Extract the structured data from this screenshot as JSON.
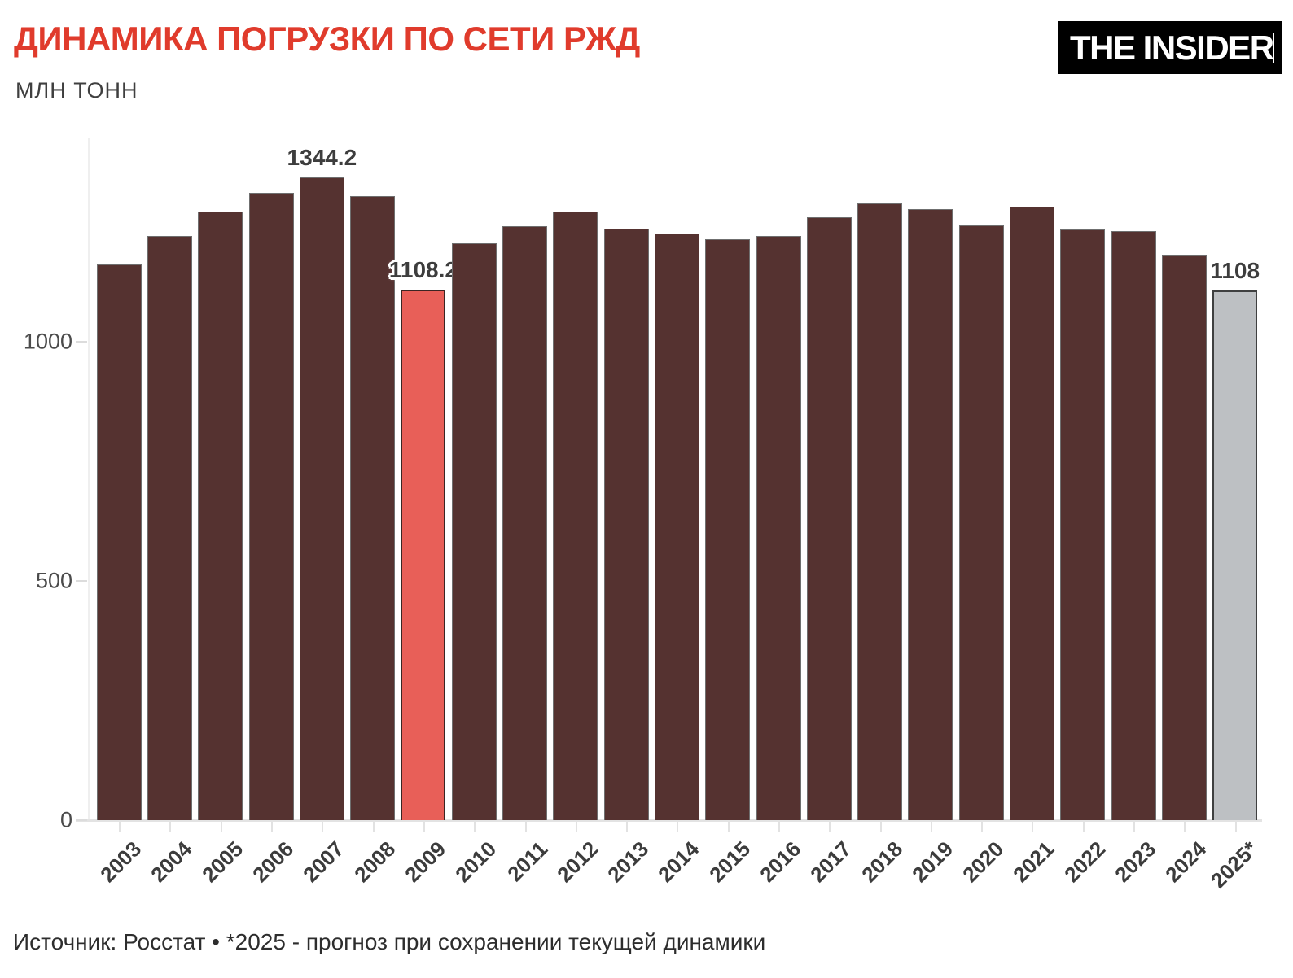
{
  "header": {
    "title": "ДИНАМИКА ПОГРУЗКИ ПО СЕТИ РЖД",
    "subtitle": "МЛН ТОНН",
    "logo_text": "THE INSIDER"
  },
  "footer": {
    "source": "Источник: Росстат • *2025 - прогноз при сохранении текущей динамики"
  },
  "colors": {
    "title": "#e03b2c",
    "bar_fill": "#553230",
    "bar_stroke": "#6f6f6f",
    "highlight_fill": "#e85f58",
    "highlight_stroke": "#3b2523",
    "forecast_fill": "#bdc0c3",
    "forecast_stroke": "#3f4040",
    "label_text": "#3d3d3d",
    "tick_text": "#4b4b4b",
    "logo_bg": "#000000",
    "logo_text": "#ffffff"
  },
  "chart_data": {
    "type": "bar",
    "title": "ДИНАМИКА ПОГРУЗКИ ПО СЕТИ РЖД",
    "xlabel": "",
    "ylabel": "МЛН ТОНН",
    "categories": [
      "2003",
      "2004",
      "2005",
      "2006",
      "2007",
      "2008",
      "2009",
      "2010",
      "2011",
      "2012",
      "2013",
      "2014",
      "2015",
      "2016",
      "2017",
      "2018",
      "2019",
      "2020",
      "2021",
      "2022",
      "2023",
      "2024",
      "2025*"
    ],
    "values": [
      1161,
      1221,
      1273,
      1311,
      1344.2,
      1304,
      1108.2,
      1206,
      1241,
      1272,
      1237,
      1227,
      1214,
      1222,
      1261,
      1290,
      1278,
      1244,
      1283,
      1234,
      1232,
      1181,
      1108
    ],
    "data_labels": [
      "",
      "",
      "",
      "",
      "1344.2",
      "",
      "1108.2",
      "",
      "",
      "",
      "",
      "",
      "",
      "",
      "",
      "",
      "",
      "",
      "",
      "",
      "",
      "",
      "1108"
    ],
    "bar_styles": [
      "normal",
      "normal",
      "normal",
      "normal",
      "normal",
      "normal",
      "highlight",
      "normal",
      "normal",
      "normal",
      "normal",
      "normal",
      "normal",
      "normal",
      "normal",
      "normal",
      "normal",
      "normal",
      "normal",
      "normal",
      "normal",
      "normal",
      "forecast"
    ],
    "y_ticks": [
      0,
      500,
      1000
    ],
    "ylim": [
      0,
      1425
    ],
    "grid": "off",
    "legend": "none"
  }
}
